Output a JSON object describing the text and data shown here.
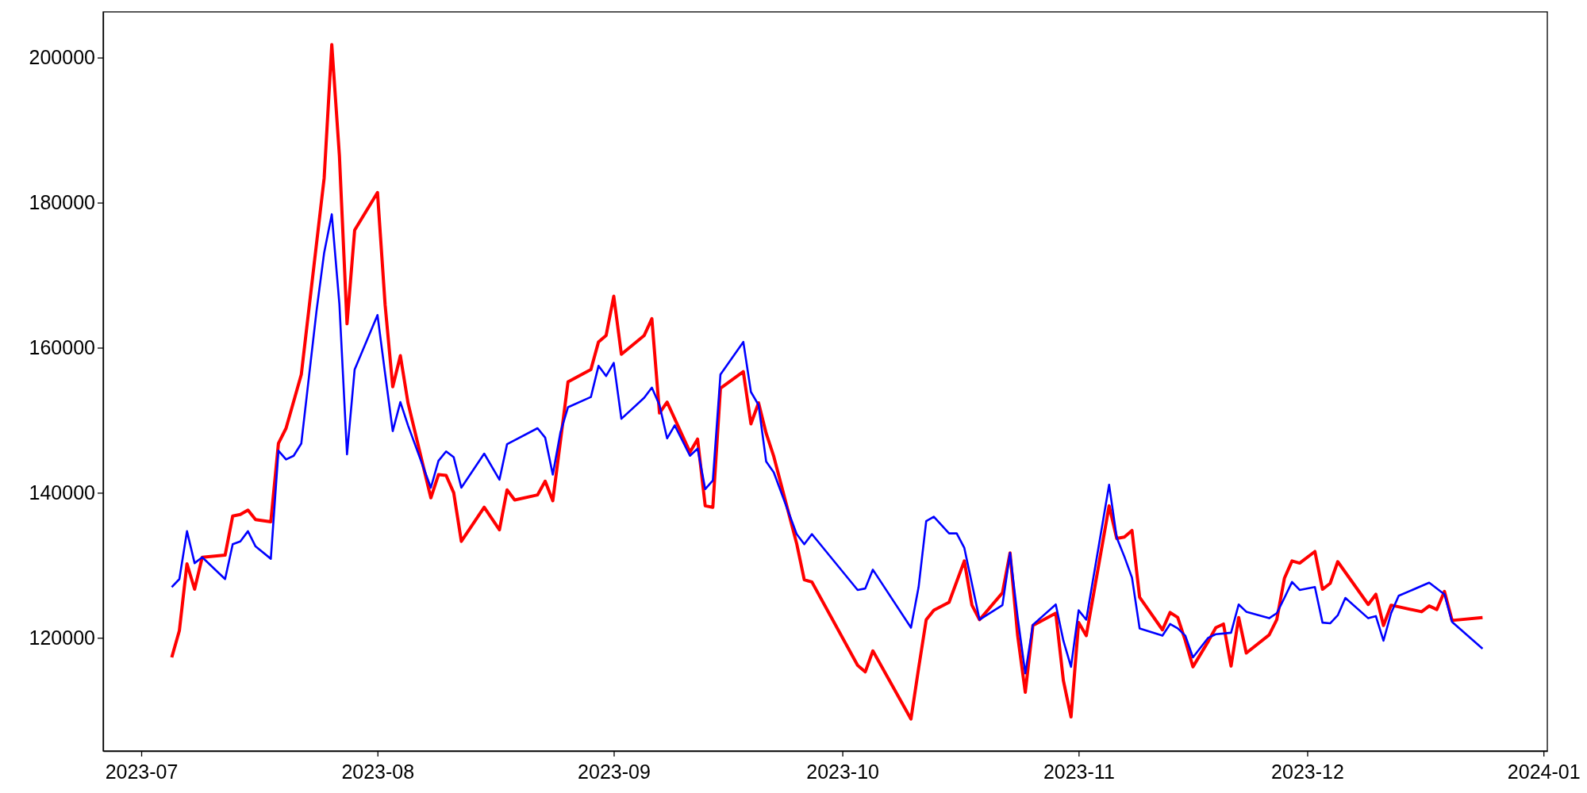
{
  "chart_data": {
    "type": "line",
    "xlim": [
      "2023-06-26",
      "2024-01-01T12:00"
    ],
    "xticks": [
      {
        "value": "2023-07-01",
        "label": "2023-07"
      },
      {
        "value": "2023-08-01",
        "label": "2023-08"
      },
      {
        "value": "2023-09-01",
        "label": "2023-09"
      },
      {
        "value": "2023-10-01",
        "label": "2023-10"
      },
      {
        "value": "2023-11-01",
        "label": "2023-11"
      },
      {
        "value": "2023-12-01",
        "label": "2023-12"
      },
      {
        "value": "2024-01-01",
        "label": "2024-01"
      }
    ],
    "ylim": [
      104400,
      206300
    ],
    "yticks": [
      120000,
      140000,
      160000,
      180000,
      200000
    ],
    "series": [
      {
        "color": "#ff0000",
        "x": [
          "2023-07-05",
          "2023-07-06",
          "2023-07-07",
          "2023-07-08",
          "2023-07-09",
          "2023-07-12",
          "2023-07-13",
          "2023-07-14",
          "2023-07-15",
          "2023-07-16",
          "2023-07-18",
          "2023-07-19",
          "2023-07-20",
          "2023-07-22",
          "2023-07-25",
          "2023-07-26",
          "2023-07-27",
          "2023-07-28",
          "2023-07-29",
          "2023-08-01",
          "2023-08-02",
          "2023-08-03",
          "2023-08-04",
          "2023-08-05",
          "2023-08-08",
          "2023-08-09",
          "2023-08-10",
          "2023-08-11",
          "2023-08-12",
          "2023-08-15",
          "2023-08-17",
          "2023-08-18",
          "2023-08-19",
          "2023-08-22",
          "2023-08-23",
          "2023-08-24",
          "2023-08-26",
          "2023-08-29",
          "2023-08-30",
          "2023-08-31",
          "2023-09-01",
          "2023-09-02",
          "2023-09-05",
          "2023-09-06",
          "2023-09-07",
          "2023-09-08",
          "2023-09-11",
          "2023-09-12",
          "2023-09-13",
          "2023-09-14",
          "2023-09-15",
          "2023-09-18",
          "2023-09-19",
          "2023-09-20",
          "2023-09-21",
          "2023-09-22",
          "2023-09-25",
          "2023-09-26",
          "2023-09-27",
          "2023-10-03",
          "2023-10-04",
          "2023-10-05",
          "2023-10-10",
          "2023-10-11",
          "2023-10-12",
          "2023-10-13",
          "2023-10-15",
          "2023-10-17",
          "2023-10-18",
          "2023-10-19",
          "2023-10-22",
          "2023-10-23",
          "2023-10-24",
          "2023-10-25",
          "2023-10-26",
          "2023-10-29",
          "2023-10-30",
          "2023-10-31",
          "2023-11-01",
          "2023-11-02",
          "2023-11-05",
          "2023-11-06",
          "2023-11-07",
          "2023-11-08",
          "2023-11-09",
          "2023-11-12",
          "2023-11-13",
          "2023-11-14",
          "2023-11-15",
          "2023-11-16",
          "2023-11-18",
          "2023-11-19",
          "2023-11-20",
          "2023-11-21",
          "2023-11-22",
          "2023-11-23",
          "2023-11-26",
          "2023-11-27",
          "2023-11-28",
          "2023-11-29",
          "2023-11-30",
          "2023-12-02",
          "2023-12-03",
          "2023-12-04",
          "2023-12-05",
          "2023-12-09",
          "2023-12-10",
          "2023-12-11",
          "2023-12-12",
          "2023-12-16",
          "2023-12-17",
          "2023-12-18",
          "2023-12-19",
          "2023-12-20",
          "2023-12-24"
        ],
        "values": [
          117300,
          121000,
          130200,
          126700,
          131100,
          131400,
          136800,
          137000,
          137600,
          136300,
          136000,
          146800,
          148900,
          156300,
          183400,
          201800,
          186500,
          163300,
          176200,
          181400,
          165900,
          154600,
          158900,
          152400,
          139300,
          142500,
          142400,
          140000,
          133300,
          138000,
          134900,
          140400,
          139000,
          139700,
          141600,
          138900,
          155300,
          157000,
          160800,
          161700,
          167100,
          159100,
          161700,
          164000,
          151000,
          152500,
          145600,
          147400,
          138200,
          138000,
          154400,
          156700,
          149500,
          152400,
          148200,
          145000,
          133000,
          128000,
          127700,
          116200,
          115300,
          118200,
          108800,
          115800,
          122500,
          123800,
          124900,
          130600,
          124500,
          122500,
          126200,
          131700,
          120300,
          112500,
          121700,
          123400,
          114100,
          109100,
          122100,
          120300,
          138200,
          133700,
          133900,
          134800,
          125600,
          121100,
          123500,
          122800,
          119600,
          116000,
          119500,
          121400,
          121900,
          116100,
          122800,
          117900,
          120400,
          122500,
          128200,
          130600,
          130300,
          131900,
          126700,
          127500,
          130500,
          124600,
          126000,
          121700,
          124500,
          123600,
          124400,
          123900,
          126400,
          122400,
          122800
        ]
      },
      {
        "color": "#0000ff",
        "x": [
          "2023-07-05",
          "2023-07-06",
          "2023-07-07",
          "2023-07-08",
          "2023-07-09",
          "2023-07-12",
          "2023-07-13",
          "2023-07-14",
          "2023-07-15",
          "2023-07-16",
          "2023-07-18",
          "2023-07-19",
          "2023-07-20",
          "2023-07-21",
          "2023-07-22",
          "2023-07-24",
          "2023-07-25",
          "2023-07-26",
          "2023-07-27",
          "2023-07-28",
          "2023-07-29",
          "2023-08-01",
          "2023-08-02",
          "2023-08-03",
          "2023-08-04",
          "2023-08-05",
          "2023-08-08",
          "2023-08-09",
          "2023-08-10",
          "2023-08-11",
          "2023-08-12",
          "2023-08-15",
          "2023-08-17",
          "2023-08-18",
          "2023-08-22",
          "2023-08-23",
          "2023-08-24",
          "2023-08-25",
          "2023-08-26",
          "2023-08-29",
          "2023-08-30",
          "2023-08-31",
          "2023-09-01",
          "2023-09-02",
          "2023-09-05",
          "2023-09-06",
          "2023-09-07",
          "2023-09-08",
          "2023-09-09",
          "2023-09-11",
          "2023-09-12",
          "2023-09-13",
          "2023-09-14",
          "2023-09-15",
          "2023-09-18",
          "2023-09-19",
          "2023-09-20",
          "2023-09-21",
          "2023-09-22",
          "2023-09-25",
          "2023-09-26",
          "2023-09-27",
          "2023-10-03",
          "2023-10-04",
          "2023-10-05",
          "2023-10-10",
          "2023-10-11",
          "2023-10-12",
          "2023-10-13",
          "2023-10-15",
          "2023-10-16",
          "2023-10-17",
          "2023-10-19",
          "2023-10-22",
          "2023-10-23",
          "2023-10-24",
          "2023-10-25",
          "2023-10-26",
          "2023-10-29",
          "2023-10-30",
          "2023-10-31",
          "2023-11-01",
          "2023-11-02",
          "2023-11-05",
          "2023-11-06",
          "2023-11-07",
          "2023-11-08",
          "2023-11-09",
          "2023-11-12",
          "2023-11-13",
          "2023-11-14",
          "2023-11-15",
          "2023-11-16",
          "2023-11-18",
          "2023-11-19",
          "2023-11-20",
          "2023-11-21",
          "2023-11-22",
          "2023-11-23",
          "2023-11-26",
          "2023-11-27",
          "2023-11-28",
          "2023-11-29",
          "2023-11-30",
          "2023-12-02",
          "2023-12-03",
          "2023-12-04",
          "2023-12-05",
          "2023-12-06",
          "2023-12-09",
          "2023-12-10",
          "2023-12-11",
          "2023-12-12",
          "2023-12-13",
          "2023-12-17",
          "2023-12-19",
          "2023-12-20",
          "2023-12-24"
        ],
        "values": [
          127000,
          128100,
          134700,
          130300,
          131100,
          128100,
          132900,
          133300,
          134700,
          132600,
          130900,
          145800,
          144600,
          145100,
          146800,
          165100,
          173100,
          178400,
          166000,
          145300,
          157000,
          164500,
          156400,
          148500,
          152500,
          149300,
          140700,
          144400,
          145700,
          144900,
          140700,
          145400,
          141800,
          146700,
          148900,
          147600,
          142500,
          148300,
          151800,
          153200,
          157500,
          156100,
          157900,
          150200,
          153100,
          154500,
          152100,
          147500,
          149300,
          145100,
          146100,
          140500,
          141700,
          156300,
          160800,
          153900,
          152100,
          144300,
          142800,
          134300,
          132900,
          134300,
          126600,
          126800,
          129400,
          121400,
          127000,
          136100,
          136700,
          134400,
          134400,
          132400,
          122500,
          124500,
          131700,
          122800,
          115100,
          121800,
          124600,
          119600,
          116000,
          123800,
          122500,
          141100,
          133800,
          131200,
          128300,
          121300,
          120300,
          121900,
          121300,
          120300,
          117300,
          120000,
          120500,
          120600,
          120700,
          124600,
          123600,
          122700,
          123400,
          125500,
          127700,
          126600,
          127000,
          122100,
          122000,
          123100,
          125500,
          122700,
          123000,
          119600,
          123400,
          125800,
          127600,
          126000,
          122200,
          118500
        ]
      }
    ]
  }
}
